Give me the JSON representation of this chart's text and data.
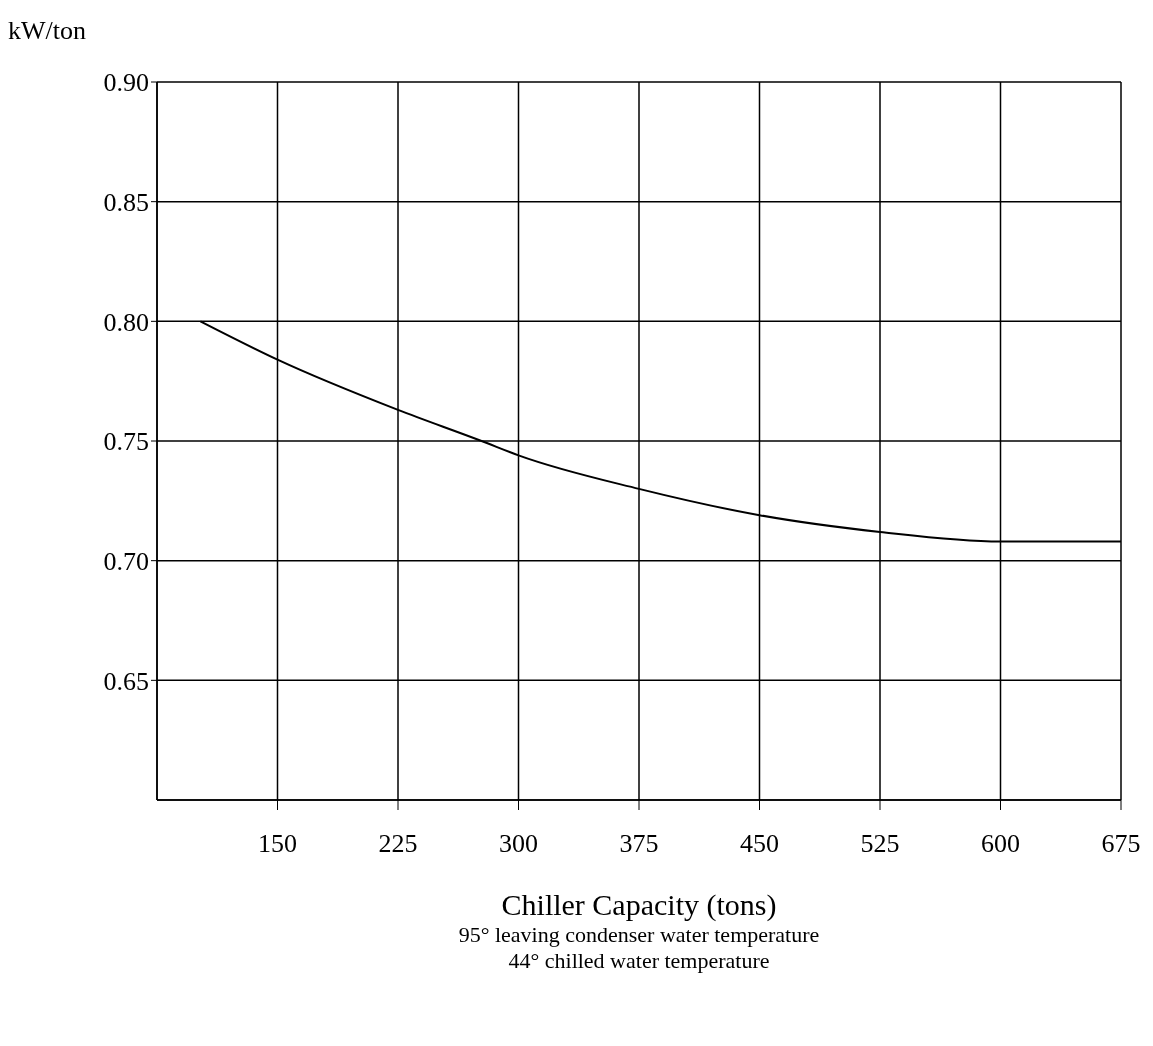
{
  "chart_data": {
    "type": "line",
    "ylabel": "kW/ton",
    "xlabel": "Chiller Capacity (tons)",
    "annotations": [
      "95° leaving condenser water temperature",
      "44° chilled water temperature"
    ],
    "x": [
      102,
      150,
      225,
      277,
      300,
      375,
      450,
      525,
      600,
      640,
      675
    ],
    "values": [
      0.8,
      0.784,
      0.763,
      0.75,
      0.744,
      0.73,
      0.719,
      0.712,
      0.708,
      0.708,
      0.708
    ],
    "color": "#000000",
    "xlim": [
      75,
      675
    ],
    "ylim": [
      0.6,
      0.9
    ],
    "xticks": [
      150,
      225,
      300,
      375,
      450,
      525,
      600,
      675
    ],
    "yticks": [
      0.65,
      {
        "value": 0.7,
        "label": "0.70"
      },
      0.75,
      {
        "value": 0.8,
        "label": "0.80"
      },
      0.85,
      {
        "value": 0.9,
        "label": "0.90"
      }
    ],
    "grid": true
  }
}
